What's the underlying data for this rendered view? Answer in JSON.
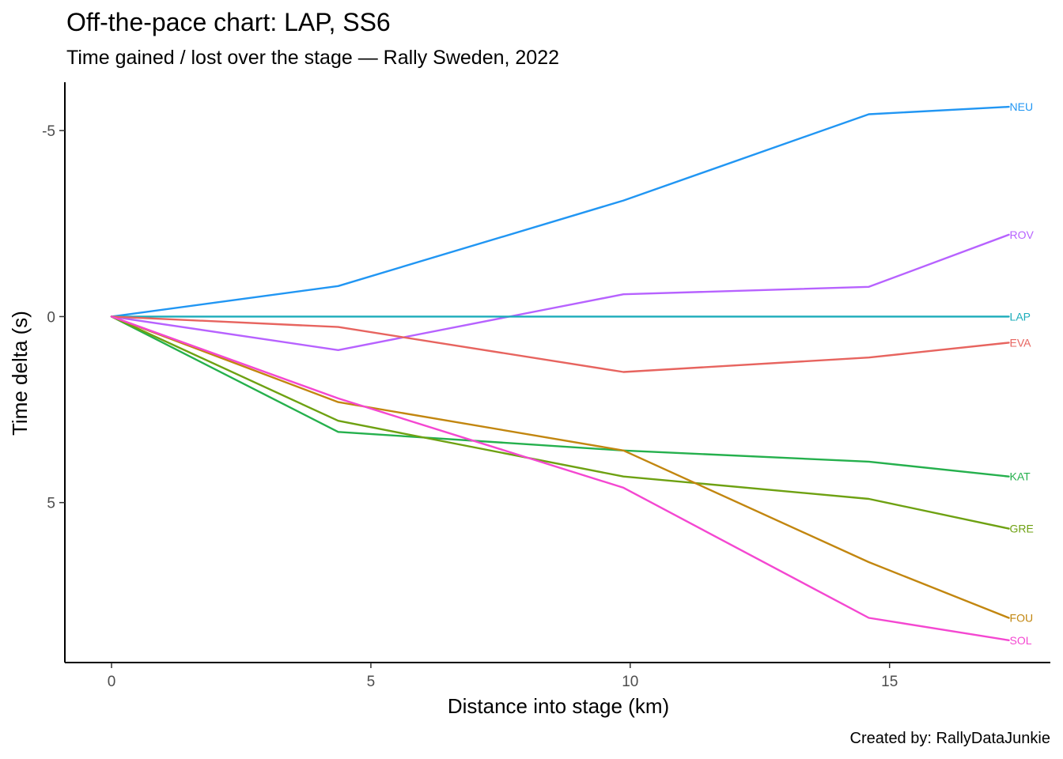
{
  "chart_data": {
    "type": "line",
    "title": "Off-the-pace chart: LAP, SS6",
    "subtitle": "Time gained / lost over the stage — Rally Sweden, 2022",
    "caption": "Created by: RallyDataJunkie",
    "xlabel": "Distance into stage (km)",
    "ylabel": "Time delta (s)",
    "xlim": [
      -0.9,
      18.1
    ],
    "ylim": [
      9.3,
      -6.3
    ],
    "y_reversed": true,
    "x_ticks": [
      0,
      5,
      10,
      15
    ],
    "y_ticks": [
      -5,
      0,
      5
    ],
    "y_tick_labels": [
      "-5",
      "0",
      "5"
    ],
    "x": [
      0,
      4.37,
      9.87,
      14.6,
      17.3
    ],
    "series": [
      {
        "name": "NEU",
        "color": "#2196F3",
        "values": [
          0,
          -0.82,
          -3.12,
          -5.44,
          -5.64
        ]
      },
      {
        "name": "ROV",
        "color": "#B762FF",
        "values": [
          0,
          0.9,
          -0.6,
          -0.8,
          -2.2
        ]
      },
      {
        "name": "LAP",
        "color": "#1AACBA",
        "values": [
          0,
          0,
          0,
          0,
          0
        ]
      },
      {
        "name": "EVA",
        "color": "#E7645F",
        "values": [
          0,
          0.28,
          1.49,
          1.1,
          0.7
        ]
      },
      {
        "name": "KAT",
        "color": "#25B04D",
        "values": [
          0,
          3.1,
          3.6,
          3.9,
          4.3
        ]
      },
      {
        "name": "GRE",
        "color": "#6EA112",
        "values": [
          0,
          2.8,
          4.3,
          4.9,
          5.7
        ]
      },
      {
        "name": "FOU",
        "color": "#C2860F",
        "values": [
          0,
          2.3,
          3.6,
          6.6,
          8.1
        ]
      },
      {
        "name": "SOL",
        "color": "#F447D1",
        "values": [
          0,
          2.2,
          4.6,
          8.1,
          8.7
        ]
      }
    ]
  }
}
